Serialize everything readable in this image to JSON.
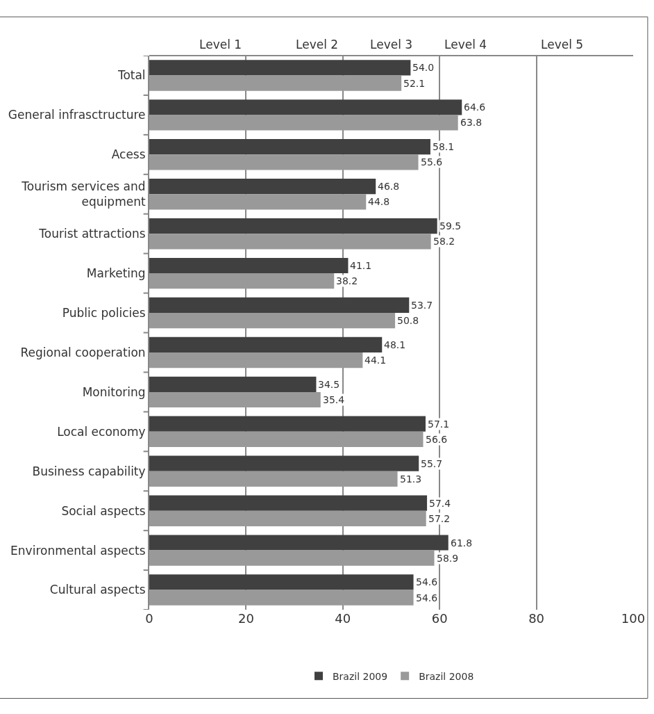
{
  "chart_data": {
    "type": "bar",
    "orientation": "horizontal",
    "categories": [
      "Total",
      "General infrasctructure",
      "Acess",
      "Tourism services and equipment",
      "Tourist attractions",
      "Marketing",
      "Public policies",
      "Regional cooperation",
      "Monitoring",
      "Local economy",
      "Business capability",
      "Social aspects",
      "Environmental aspects",
      "Cultural aspects"
    ],
    "series": [
      {
        "name": "Brazil 2009",
        "color": "#404040",
        "values": [
          54.0,
          64.6,
          58.1,
          46.8,
          59.5,
          41.1,
          53.7,
          48.1,
          34.5,
          57.1,
          55.7,
          57.4,
          61.8,
          54.6
        ],
        "value_labels": [
          "54.0",
          "64.6",
          "58.1",
          "46.8",
          "59.5",
          "41.1",
          "53.7",
          "48.1",
          "34.5",
          "57.1",
          "55.7",
          "57.4",
          "61.8",
          "54.6"
        ]
      },
      {
        "name": "Brazil 2008",
        "color": "#999999",
        "values": [
          52.1,
          63.8,
          55.6,
          44.8,
          58.2,
          38.2,
          50.8,
          44.1,
          35.4,
          56.6,
          51.3,
          57.2,
          58.9,
          54.6
        ],
        "value_labels": [
          "52.1",
          "63.8",
          "55.6",
          "44.8",
          "58.2",
          "38.2",
          "50.8",
          "44.1",
          "35.4",
          "56.6",
          "51.3",
          "57.2",
          "58.9",
          "54.6"
        ]
      }
    ],
    "xlim": [
      0,
      100
    ],
    "xticks": [
      0,
      20,
      40,
      60,
      80,
      100
    ],
    "annotations": [
      "Level 1",
      "Level 2",
      "Level 3",
      "Level 4",
      "Level 5"
    ],
    "grid": "x",
    "legend": "bottom"
  }
}
